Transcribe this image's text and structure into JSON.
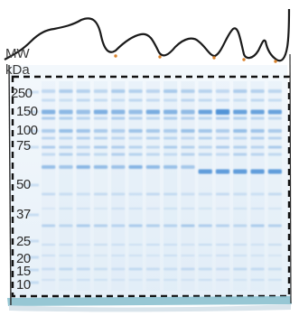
{
  "figure": {
    "subject": "SDS-PAGE gel stained with Coomassie blue",
    "axis_label_line1": "MW",
    "axis_label_line2": "kDa",
    "markers": [
      "250",
      "150",
      "100",
      "75",
      "50",
      "37",
      "25",
      "20",
      "15",
      "10"
    ],
    "colors": {
      "gel": "#eef5fb",
      "band": "#4a8fd6",
      "dashed_box": "#111111",
      "outline": "#1a1a1a",
      "orange_dot": "#d9822b",
      "bottom_edge": "#6aa9b8"
    },
    "lane_count": 14
  }
}
